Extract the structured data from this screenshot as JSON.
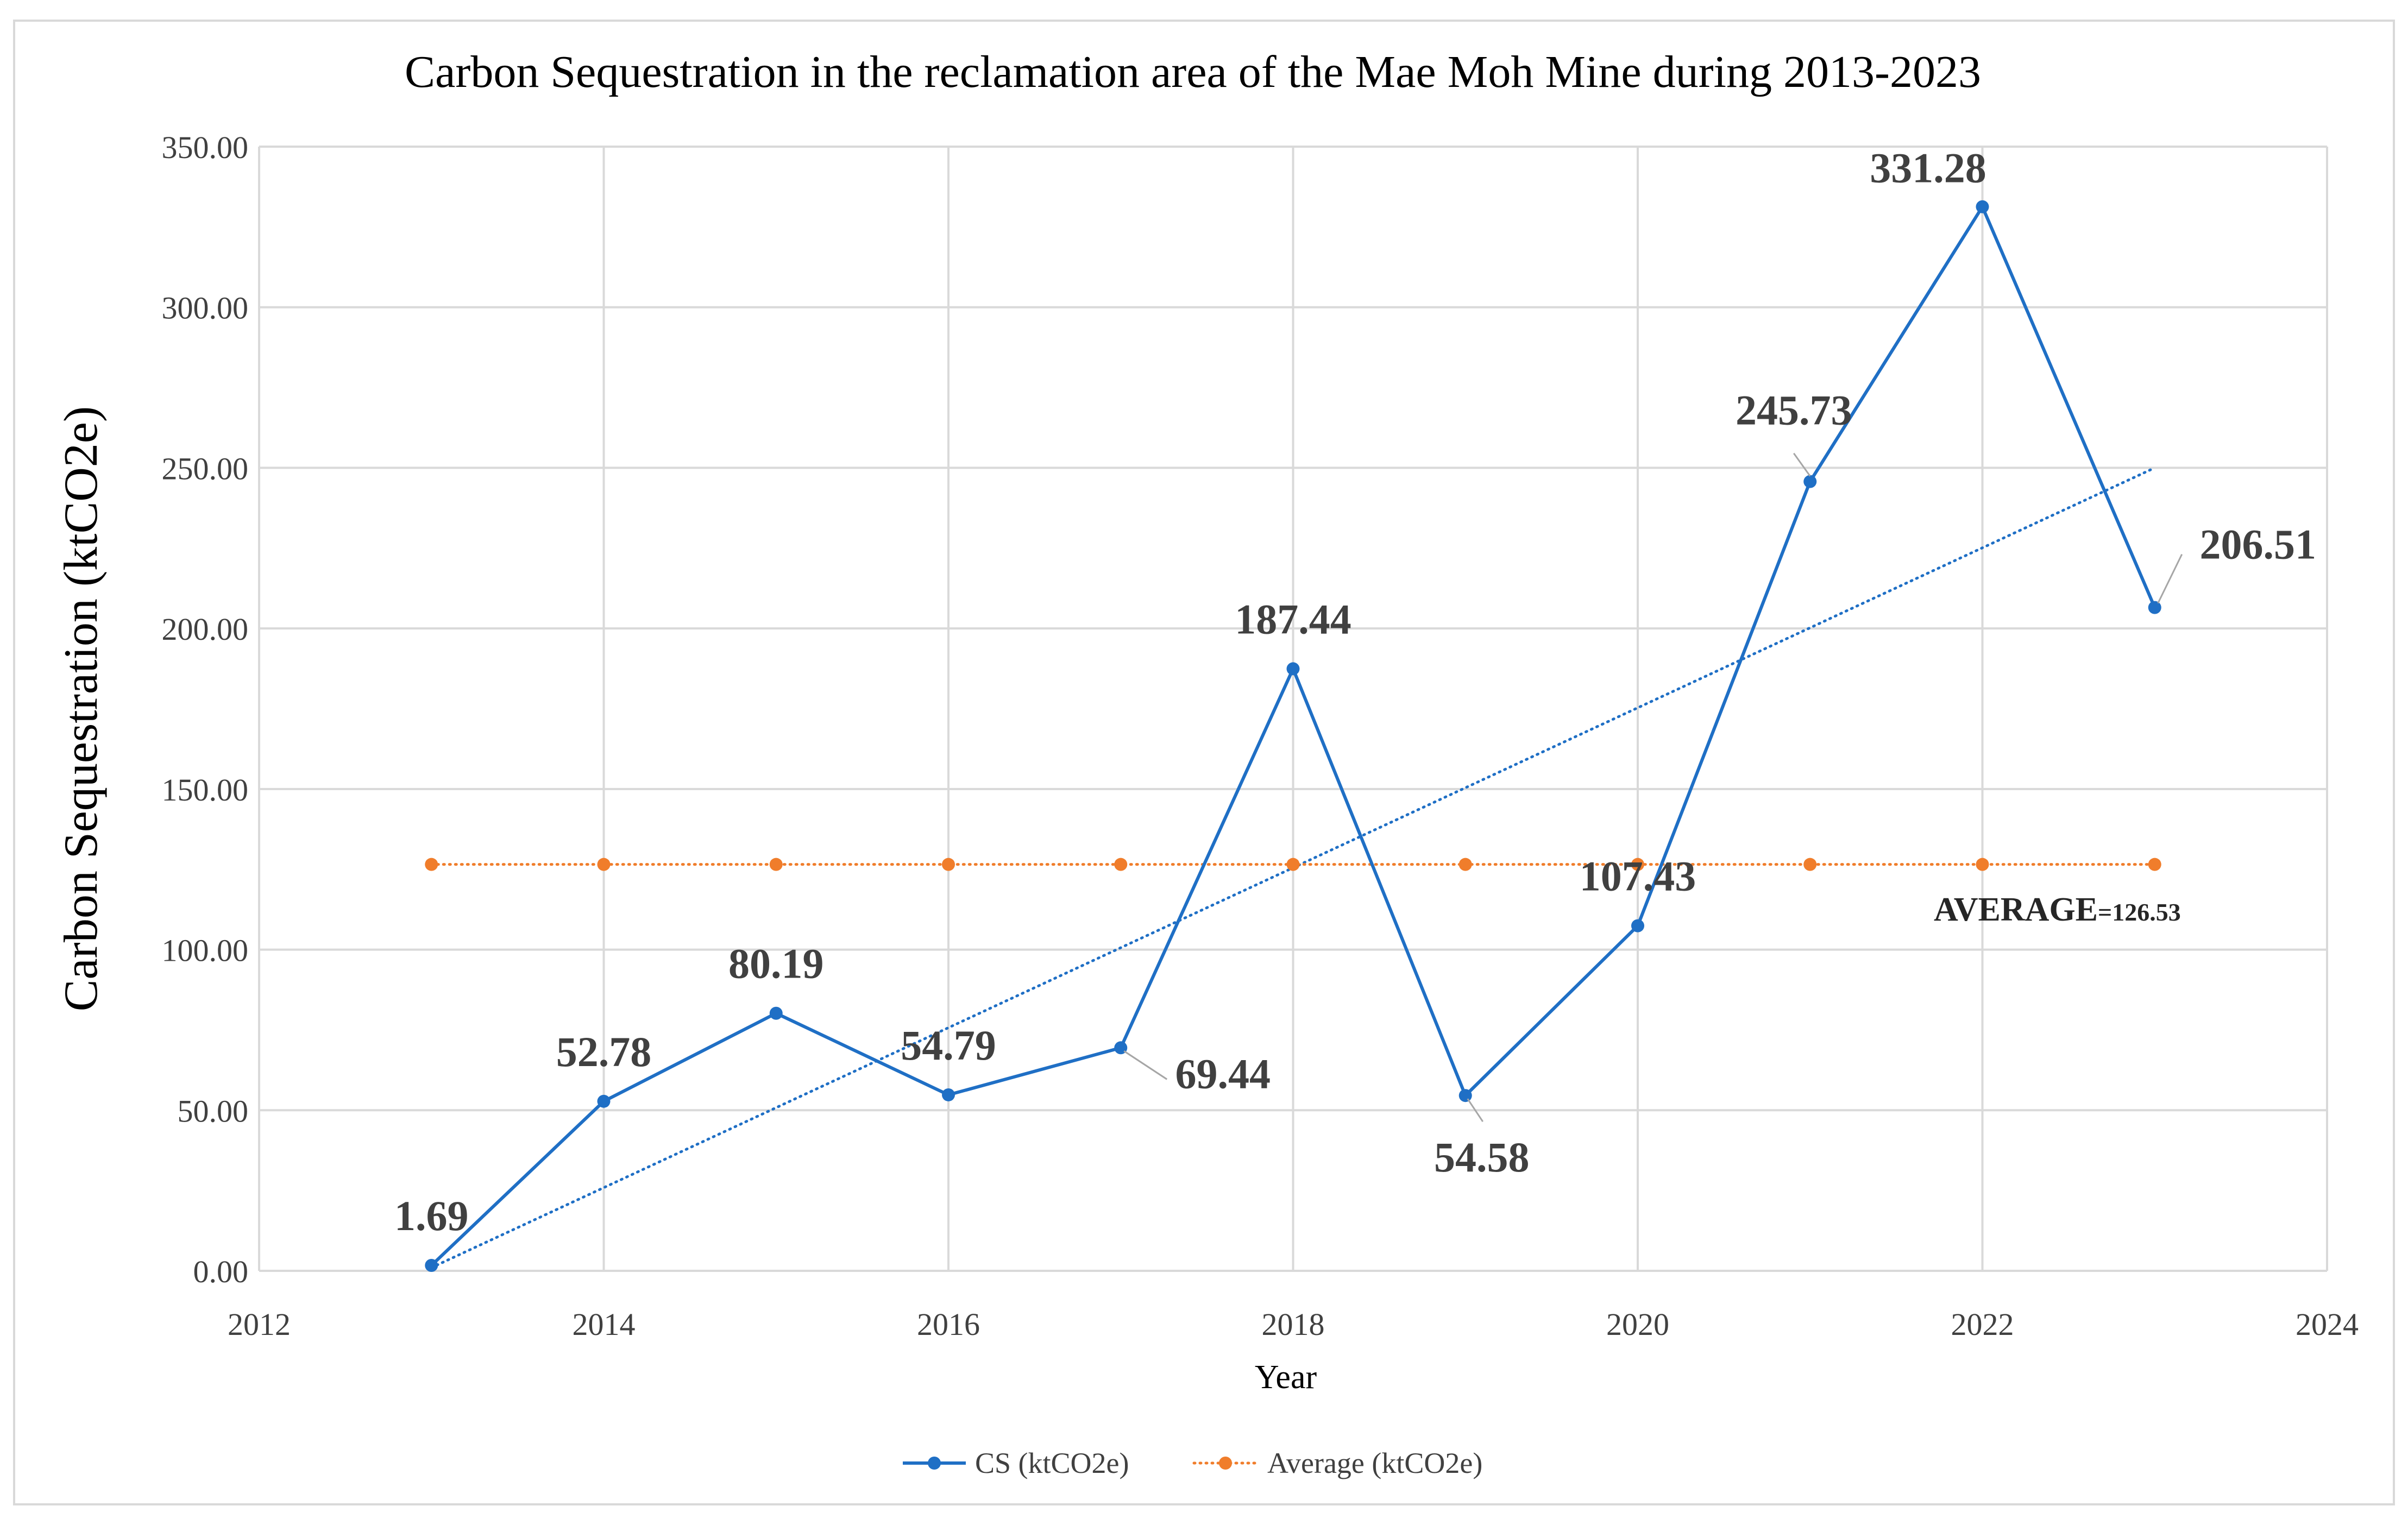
{
  "chart_data": {
    "type": "line",
    "title": "Carbon Sequestration in the reclamation area of the Mae Moh Mine during 2013-2023",
    "xlabel": "Year",
    "ylabel": "Carbon Sequestration (ktCO2e)",
    "xlim": [
      2012,
      2024
    ],
    "ylim": [
      0,
      350
    ],
    "x_ticks": [
      "2012",
      "2014",
      "2016",
      "2018",
      "2020",
      "2022",
      "2024"
    ],
    "y_ticks": [
      "0.00",
      "50.00",
      "100.00",
      "150.00",
      "200.00",
      "250.00",
      "300.00",
      "350.00"
    ],
    "grid": true,
    "legend_position": "bottom-center",
    "series": [
      {
        "name": "CS (ktCO2e)",
        "style": "solid-line-with-markers",
        "color": "#1f6fc5",
        "x": [
          2013,
          2014,
          2015,
          2016,
          2017,
          2018,
          2019,
          2020,
          2021,
          2022,
          2023
        ],
        "values": [
          1.69,
          52.78,
          80.19,
          54.79,
          69.44,
          187.44,
          54.58,
          107.43,
          245.73,
          331.28,
          206.51
        ],
        "data_labels": [
          "1.69",
          "52.78",
          "80.19",
          "54.79",
          "69.44",
          "187.44",
          "54.58",
          "107.43",
          "245.73",
          "331.28",
          "206.51"
        ]
      },
      {
        "name": "Average (ktCO2e)",
        "style": "dotted-line-with-markers",
        "color": "#f07d2b",
        "x": [
          2013,
          2014,
          2015,
          2016,
          2017,
          2018,
          2019,
          2020,
          2021,
          2022,
          2023
        ],
        "values": [
          126.53,
          126.53,
          126.53,
          126.53,
          126.53,
          126.53,
          126.53,
          126.53,
          126.53,
          126.53,
          126.53
        ]
      }
    ],
    "trendline": {
      "type": "linear",
      "series": "CS (ktCO2e)",
      "color": "#1f6fc5",
      "x": [
        2013,
        2023
      ],
      "values": [
        1.0,
        250.0
      ]
    },
    "annotations": [
      {
        "prefix": "AVERAGE",
        "suffix": "=126.53"
      }
    ]
  }
}
